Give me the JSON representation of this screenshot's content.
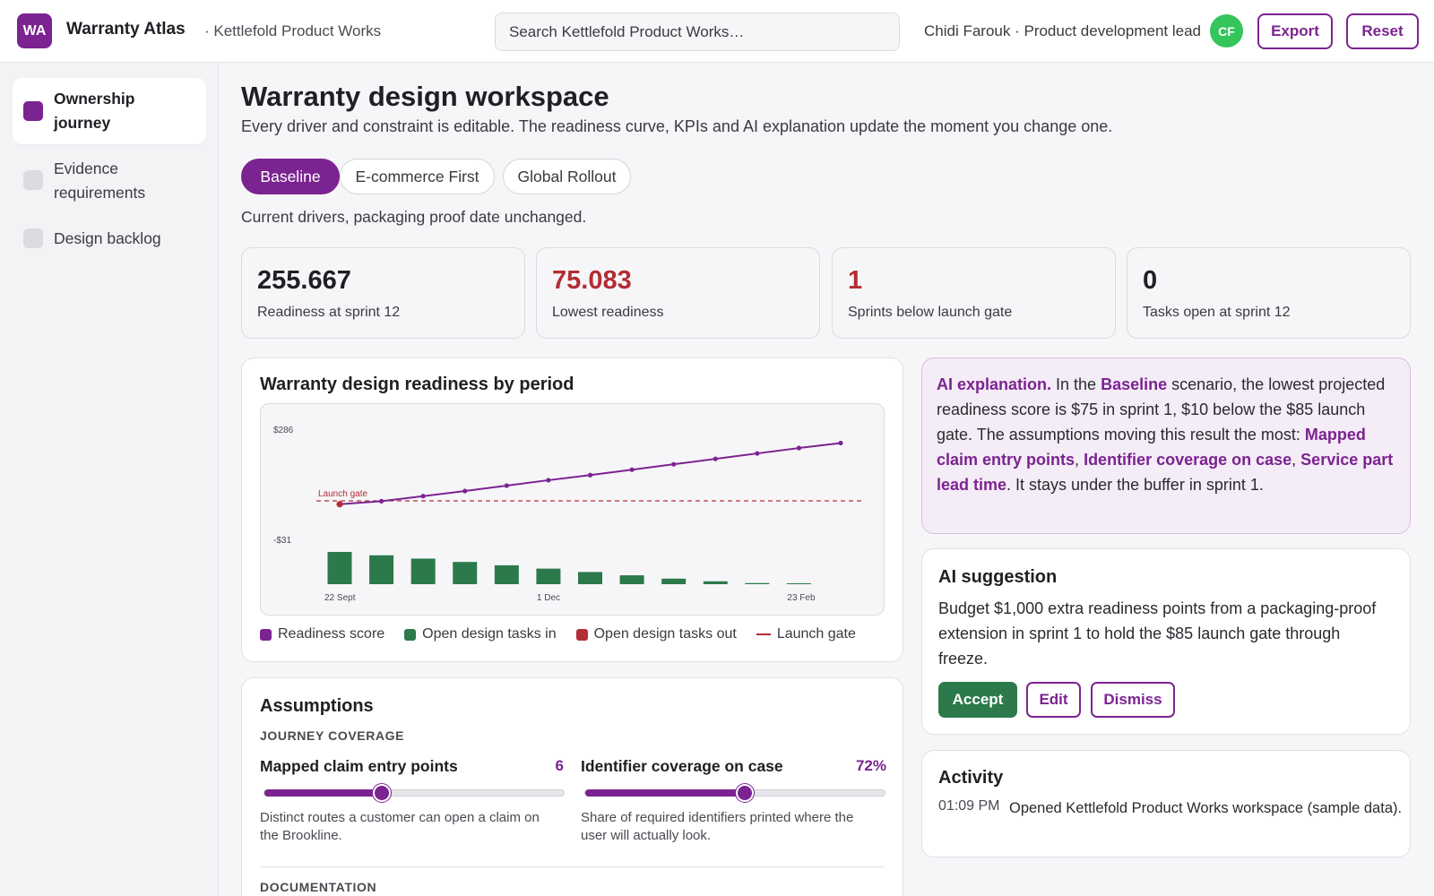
{
  "header": {
    "logo": "WA",
    "app_title": "Warranty Atlas",
    "org": "· Kettlefold Product Works",
    "search_placeholder": "Search Kettlefold Product Works…",
    "user": "Chidi Farouk · Product development lead",
    "avatar": "CF",
    "export_label": "Export",
    "reset_label": "Reset"
  },
  "sidebar": {
    "items": [
      {
        "label": "Ownership journey",
        "active": true
      },
      {
        "label": "Evidence requirements",
        "active": false
      },
      {
        "label": "Design backlog",
        "active": false
      }
    ]
  },
  "main": {
    "title": "Warranty design workspace",
    "subtitle": "Every driver and constraint is editable. The readiness curve, KPIs and AI explanation update the moment you change one.",
    "tabs": [
      {
        "label": "Baseline",
        "active": true
      },
      {
        "label": "E-commerce First",
        "active": false
      },
      {
        "label": "Global Rollout",
        "active": false
      }
    ],
    "scenario_note": "Current drivers, packaging proof date unchanged."
  },
  "kpis": [
    {
      "value": "255.667",
      "label": "Readiness at sprint 12",
      "color": "#1f1f24"
    },
    {
      "value": "75.083",
      "label": "Lowest readiness",
      "color": "#b32d34"
    },
    {
      "value": "1",
      "label": "Sprints below launch gate",
      "color": "#b32d34"
    },
    {
      "value": "0",
      "label": "Tasks open at sprint 12",
      "color": "#1f1f24"
    }
  ],
  "chart_card": {
    "title": "Warranty design readiness by period"
  },
  "chart_data": {
    "type": "line",
    "title": "Warranty design readiness by period",
    "y_tick_labels": [
      "$286",
      "-$31"
    ],
    "x_tick_labels": [
      "22 Sept",
      "1 Dec",
      "23 Feb"
    ],
    "ylim": [
      -31,
      286
    ],
    "launch_gate_label": "Launch gate",
    "launch_gate_value": 85,
    "series": [
      {
        "name": "Readiness score",
        "color": "#7b2390",
        "values": [
          75.083,
          84,
          99,
          114,
          130,
          146,
          161,
          177,
          193,
          209,
          225,
          241,
          255.667
        ]
      },
      {
        "name": "Open design tasks in",
        "color": "#2c7a4b",
        "values": [
          14.5,
          13,
          11.5,
          10,
          8.5,
          7,
          5.5,
          4,
          2.5,
          1.3,
          0.5,
          0.3,
          0
        ]
      },
      {
        "name": "Open design tasks out",
        "color": "#b32d34",
        "values": []
      }
    ],
    "legend": [
      {
        "label": "Readiness score",
        "color": "#7b2390",
        "kind": "square"
      },
      {
        "label": "Open design tasks in",
        "color": "#2c7a4b",
        "kind": "square"
      },
      {
        "label": "Open design tasks out",
        "color": "#b32d34",
        "kind": "square"
      },
      {
        "label": "Launch gate",
        "color": "#b32d34",
        "kind": "line"
      }
    ],
    "grid": false,
    "legend_placement": "bottom"
  },
  "ai_explanation": {
    "lead": "AI explanation.",
    "t1": " In the ",
    "scenario": "Baseline",
    "t2": " scenario, the lowest projected readiness score is $75 in sprint 1, $10 below the $85 launch gate. The assumptions moving this result the most: ",
    "d1": "Mapped claim entry points",
    "sep1": ", ",
    "d2": "Identifier coverage on case",
    "sep2": ", ",
    "d3": "Service part lead time",
    "t3": ". It stays under the buffer in sprint 1."
  },
  "ai_suggestion": {
    "title": "AI suggestion",
    "text": "Budget $1,000 extra readiness points from a packaging-proof extension in sprint 1 to hold the $85 launch gate through freeze.",
    "accept": "Accept",
    "edit": "Edit",
    "dismiss": "Dismiss"
  },
  "activity": {
    "title": "Activity",
    "time": "01:09 PM",
    "text": "Opened Kettlefold Product Works workspace (sample data)."
  },
  "assumptions": {
    "title": "Assumptions",
    "section1": "JOURNEY COVERAGE",
    "slider1": {
      "label": "Mapped claim entry points",
      "value": "6",
      "fraction": 0.39,
      "desc": "Distinct routes a customer can open a claim on the Brookline."
    },
    "slider2": {
      "label": "Identifier coverage on case",
      "value": "72%",
      "fraction": 0.53,
      "desc": "Share of required identifiers printed where the user will actually look."
    },
    "section2": "DOCUMENTATION"
  }
}
